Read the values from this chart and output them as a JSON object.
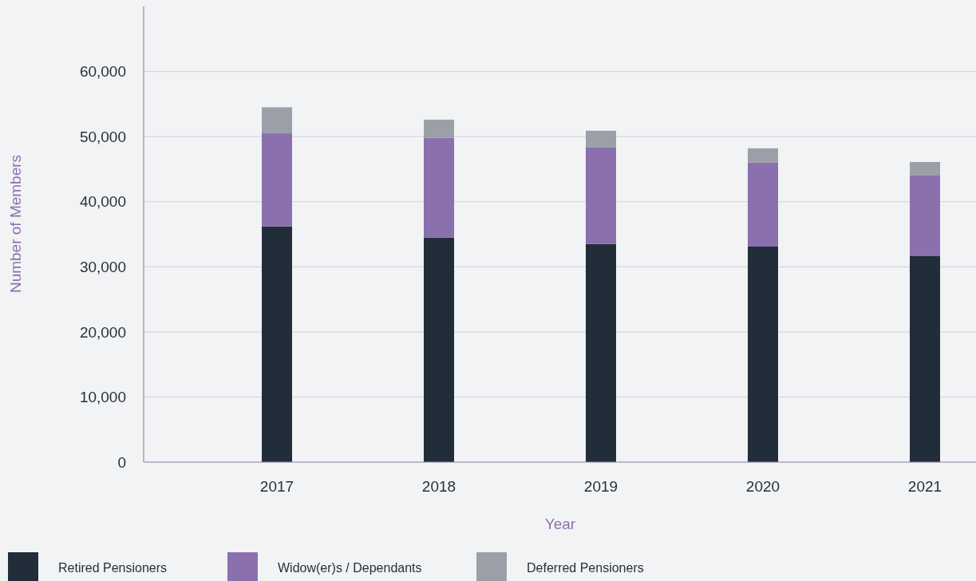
{
  "chart_data": {
    "type": "bar",
    "stacked": true,
    "xlabel": "Year",
    "ylabel": "Number of Members",
    "categories": [
      "2017",
      "2018",
      "2019",
      "2020",
      "2021"
    ],
    "series": [
      {
        "name": "Retired Pensioners",
        "color": "#222d3a",
        "values": [
          36200,
          34500,
          33500,
          33100,
          31700
        ]
      },
      {
        "name": "Widow(er)s / Dependants",
        "color": "#8b70ae",
        "values": [
          14300,
          15300,
          14800,
          12900,
          12400
        ]
      },
      {
        "name": "Deferred Pensioners",
        "color": "#9ba0a8",
        "values": [
          4000,
          2800,
          2600,
          2200,
          2000
        ]
      }
    ],
    "ylim": [
      0,
      70000
    ],
    "yticks": [
      {
        "value": 0,
        "label": "0"
      },
      {
        "value": 10000,
        "label": "10,000"
      },
      {
        "value": 20000,
        "label": "20,000"
      },
      {
        "value": 30000,
        "label": "30,000"
      },
      {
        "value": 40000,
        "label": "40,000"
      },
      {
        "value": 50000,
        "label": "50,000"
      },
      {
        "value": 60000,
        "label": "60,000"
      }
    ],
    "grid": "y",
    "legend": "bottom"
  }
}
